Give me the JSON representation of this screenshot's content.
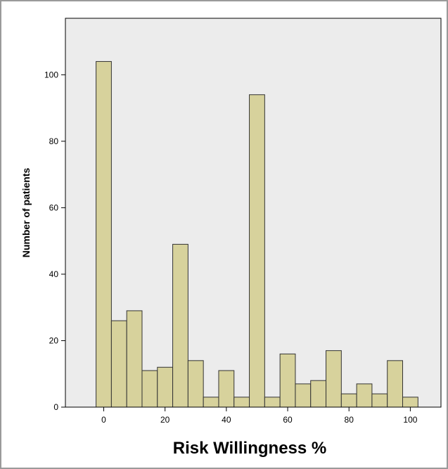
{
  "chart_data": {
    "type": "bar",
    "title": "",
    "xlabel": "Risk Willingness %",
    "ylabel": "Number of patients",
    "xlim": [
      -12.5,
      110
    ],
    "ylim": [
      0,
      117
    ],
    "bin_width": 5,
    "x": [
      0,
      5,
      10,
      15,
      20,
      25,
      30,
      35,
      40,
      45,
      50,
      55,
      60,
      65,
      70,
      75,
      80,
      85,
      90,
      95,
      100
    ],
    "values": [
      104,
      26,
      29,
      11,
      12,
      49,
      14,
      3,
      11,
      3,
      94,
      3,
      16,
      7,
      8,
      17,
      4,
      7,
      4,
      14,
      3
    ],
    "x_ticks": [
      "0",
      "20",
      "40",
      "60",
      "80",
      "100"
    ],
    "y_ticks": [
      "0",
      "20",
      "40",
      "60",
      "80",
      "100"
    ],
    "grid": false,
    "legend": "none",
    "colors": {
      "bar_fill": "#d7d29c",
      "bar_stroke": "#333333",
      "plot_background": "#ececec"
    }
  }
}
